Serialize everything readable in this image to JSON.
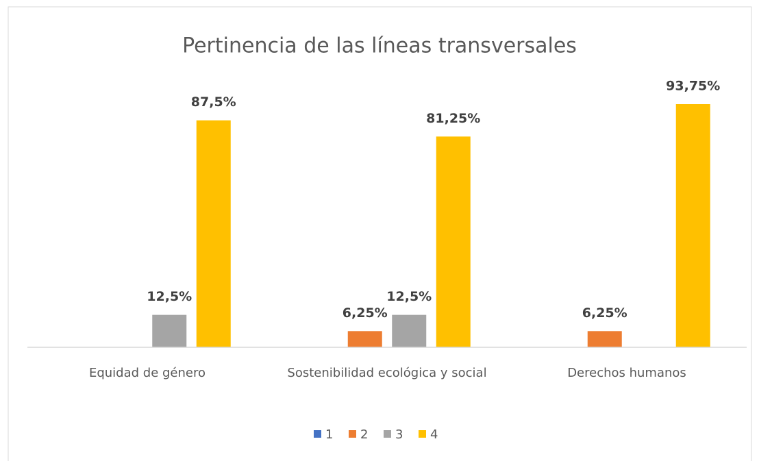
{
  "chart_data": {
    "type": "bar",
    "title": "Pertinencia de las líneas transversales",
    "categories": [
      "Equidad de género",
      "Sostenibilidad ecológica y social",
      "Derechos humanos"
    ],
    "series": [
      {
        "name": "1",
        "color": "#4472c4",
        "values": [
          0,
          0,
          0
        ],
        "value_labels": [
          null,
          null,
          null
        ]
      },
      {
        "name": "2",
        "color": "#ed7d31",
        "values": [
          0,
          6.25,
          6.25
        ],
        "value_labels": [
          null,
          "6,25%",
          "6,25%"
        ]
      },
      {
        "name": "3",
        "color": "#a5a5a5",
        "values": [
          12.5,
          12.5,
          0
        ],
        "value_labels": [
          "12,5%",
          "12,5%",
          null
        ]
      },
      {
        "name": "4",
        "color": "#ffc000",
        "values": [
          87.5,
          81.25,
          93.75
        ],
        "value_labels": [
          "87,5%",
          "81,25%",
          "93,75%"
        ]
      }
    ],
    "legend": "bottom"
  }
}
